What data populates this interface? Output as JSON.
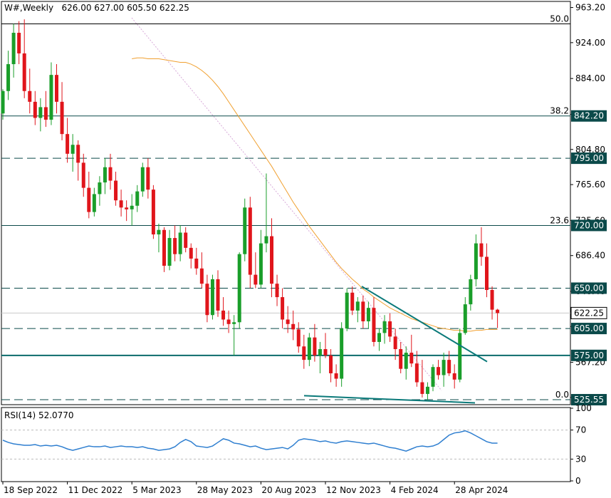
{
  "header": {
    "symbol": "W#,Weekly",
    "ohlc": "626.00 627.00 605.50 622.25"
  },
  "rsi": {
    "label": "RSI(14) 52.0770",
    "ticks": [
      "100",
      "70",
      "30",
      "0"
    ],
    "levels": [
      70,
      30
    ],
    "values": [
      56,
      53,
      51,
      50,
      49,
      49,
      50,
      48,
      49,
      48,
      49,
      47,
      44,
      42,
      44,
      46,
      48,
      47,
      47,
      48,
      46,
      47,
      48,
      47,
      47,
      46,
      47,
      45,
      44,
      42,
      43,
      44,
      47,
      53,
      57,
      54,
      48,
      47,
      46,
      48,
      53,
      58,
      56,
      52,
      51,
      49,
      47,
      48,
      45,
      43,
      44,
      45,
      46,
      44,
      49,
      56,
      58,
      57,
      56,
      54,
      55,
      53,
      52,
      54,
      55,
      54,
      53,
      52,
      51,
      52,
      50,
      48,
      46,
      45,
      43,
      41,
      44,
      47,
      48,
      47,
      48,
      51,
      57,
      63,
      66,
      67,
      69,
      66,
      62,
      58,
      54,
      52,
      52
    ],
    "color": "#2f7fd0"
  },
  "price_axis": {
    "ticks": [
      "963.20",
      "924.00",
      "884.00",
      "844.00",
      "804.80",
      "765.60",
      "725.60",
      "686.40",
      "646.40",
      "607.20",
      "567.20",
      "528.00"
    ]
  },
  "time_axis": {
    "labels": [
      "18 Sep 2022",
      "11 Dec 2022",
      "5 Mar 2023",
      "28 May 2023",
      "20 Aug 2023",
      "12 Nov 2023",
      "4 Feb 2024",
      "28 Apr 2024"
    ]
  },
  "levels": [
    {
      "label": "842.20",
      "value": 842.2,
      "style": "solid",
      "color": "#0b4a4a"
    },
    {
      "label": "795.00",
      "value": 795.0,
      "style": "dashed",
      "color": "#0b4a4a"
    },
    {
      "label": "720.00",
      "value": 720.0,
      "style": "solid",
      "color": "#0b4a4a"
    },
    {
      "label": "650.00",
      "value": 650.0,
      "style": "dashed",
      "color": "#0b4a4a"
    },
    {
      "label": "622.25",
      "value": 622.25,
      "style": "current",
      "color": "#b0b0b0"
    },
    {
      "label": "605.00",
      "value": 605.0,
      "style": "dashed",
      "color": "#0b4a4a"
    },
    {
      "label": "575.00",
      "value": 575.0,
      "style": "solid-thick",
      "color": "#0b6b6b"
    },
    {
      "label": "525.55",
      "value": 525.55,
      "style": "dashed",
      "color": "#0b4a4a"
    }
  ],
  "fibonacci": [
    {
      "label": "50.0",
      "value": 945.0
    },
    {
      "label": "38.2",
      "value": 842.2
    },
    {
      "label": "23.6",
      "value": 720.0
    },
    {
      "label": "0.0",
      "value": 525.55
    }
  ],
  "colors": {
    "bull": "#1a9e2a",
    "bear": "#e0151b",
    "ma": "#f0a030",
    "trend": "#0b7a7a",
    "diag": "#d7a8d8"
  },
  "chart_data": {
    "type": "candlestick",
    "symbol": "W#",
    "timeframe": "Weekly",
    "ylim": [
      520,
      970
    ],
    "candles": [
      [
        845,
        872,
        838,
        870
      ],
      [
        870,
        915,
        860,
        900
      ],
      [
        900,
        945,
        885,
        935
      ],
      [
        935,
        948,
        900,
        912
      ],
      [
        912,
        950,
        862,
        870
      ],
      [
        870,
        895,
        845,
        858
      ],
      [
        858,
        870,
        832,
        840
      ],
      [
        840,
        862,
        825,
        852
      ],
      [
        852,
        870,
        830,
        838
      ],
      [
        838,
        902,
        832,
        888
      ],
      [
        888,
        900,
        845,
        858
      ],
      [
        858,
        880,
        815,
        822
      ],
      [
        822,
        840,
        790,
        800
      ],
      [
        800,
        822,
        780,
        810
      ],
      [
        810,
        815,
        770,
        790
      ],
      [
        790,
        800,
        752,
        762
      ],
      [
        762,
        780,
        728,
        735
      ],
      [
        735,
        762,
        730,
        755
      ],
      [
        755,
        775,
        742,
        768
      ],
      [
        768,
        795,
        755,
        785
      ],
      [
        785,
        800,
        760,
        770
      ],
      [
        770,
        780,
        742,
        748
      ],
      [
        748,
        760,
        730,
        740
      ],
      [
        740,
        748,
        725,
        738
      ],
      [
        738,
        755,
        720,
        742
      ],
      [
        742,
        765,
        735,
        758
      ],
      [
        758,
        790,
        752,
        785
      ],
      [
        785,
        795,
        750,
        760
      ],
      [
        760,
        765,
        705,
        710
      ],
      [
        710,
        722,
        690,
        715
      ],
      [
        715,
        718,
        668,
        675
      ],
      [
        675,
        715,
        670,
        706
      ],
      [
        706,
        720,
        680,
        688
      ],
      [
        688,
        720,
        680,
        712
      ],
      [
        712,
        718,
        690,
        695
      ],
      [
        695,
        700,
        672,
        683
      ],
      [
        683,
        695,
        665,
        672
      ],
      [
        672,
        690,
        650,
        655
      ],
      [
        655,
        665,
        612,
        620
      ],
      [
        620,
        665,
        615,
        660
      ],
      [
        660,
        670,
        618,
        625
      ],
      [
        625,
        640,
        608,
        615
      ],
      [
        615,
        625,
        600,
        610
      ],
      [
        610,
        620,
        575,
        612
      ],
      [
        612,
        690,
        605,
        688
      ],
      [
        688,
        750,
        680,
        740
      ],
      [
        740,
        752,
        650,
        665
      ],
      [
        665,
        690,
        650,
        654
      ],
      [
        654,
        715,
        650,
        700
      ],
      [
        700,
        778,
        690,
        708
      ],
      [
        708,
        728,
        640,
        655
      ],
      [
        655,
        665,
        630,
        640
      ],
      [
        640,
        650,
        605,
        615
      ],
      [
        615,
        630,
        600,
        610
      ],
      [
        610,
        625,
        592,
        604
      ],
      [
        604,
        612,
        578,
        585
      ],
      [
        585,
        598,
        560,
        570
      ],
      [
        570,
        600,
        563,
        595
      ],
      [
        595,
        610,
        568,
        575
      ],
      [
        575,
        590,
        555,
        582
      ],
      [
        582,
        600,
        572,
        575
      ],
      [
        575,
        582,
        545,
        555
      ],
      [
        555,
        565,
        540,
        549
      ],
      [
        549,
        612,
        540,
        605
      ],
      [
        605,
        650,
        602,
        645
      ],
      [
        645,
        652,
        620,
        625
      ],
      [
        625,
        640,
        612,
        635
      ],
      [
        635,
        642,
        605,
        613
      ],
      [
        613,
        635,
        605,
        628
      ],
      [
        628,
        640,
        585,
        590
      ],
      [
        590,
        605,
        580,
        600
      ],
      [
        600,
        620,
        588,
        613
      ],
      [
        613,
        622,
        590,
        596
      ],
      [
        596,
        605,
        570,
        582
      ],
      [
        582,
        590,
        555,
        560
      ],
      [
        560,
        585,
        548,
        578
      ],
      [
        578,
        598,
        562,
        566
      ],
      [
        566,
        580,
        540,
        545
      ],
      [
        545,
        570,
        528,
        532
      ],
      [
        532,
        545,
        525,
        540
      ],
      [
        540,
        565,
        535,
        562
      ],
      [
        562,
        570,
        548,
        553
      ],
      [
        553,
        578,
        540,
        570
      ],
      [
        570,
        580,
        552,
        555
      ],
      [
        555,
        565,
        538,
        548
      ],
      [
        548,
        605,
        545,
        600
      ],
      [
        600,
        640,
        598,
        632
      ],
      [
        632,
        665,
        625,
        660
      ],
      [
        660,
        710,
        652,
        700
      ],
      [
        700,
        718,
        675,
        685
      ],
      [
        685,
        700,
        640,
        648
      ],
      [
        648,
        652,
        615,
        626
      ],
      [
        626,
        627,
        605.5,
        622.25
      ]
    ],
    "moving_average": [
      906,
      907,
      907,
      906,
      906,
      906,
      905,
      904,
      903,
      902,
      902,
      900,
      897,
      893,
      888,
      882,
      875,
      867,
      858,
      849,
      840,
      831,
      822,
      813,
      804,
      795,
      786,
      776,
      766,
      756,
      746,
      737,
      728,
      719,
      711,
      703,
      695,
      687,
      679,
      672,
      666,
      660,
      655,
      649,
      645,
      640,
      636,
      632,
      628,
      625,
      622,
      619,
      616,
      614,
      612,
      610,
      608,
      606,
      605,
      604,
      603,
      603,
      602,
      602,
      603,
      603,
      604,
      604,
      604
    ]
  }
}
